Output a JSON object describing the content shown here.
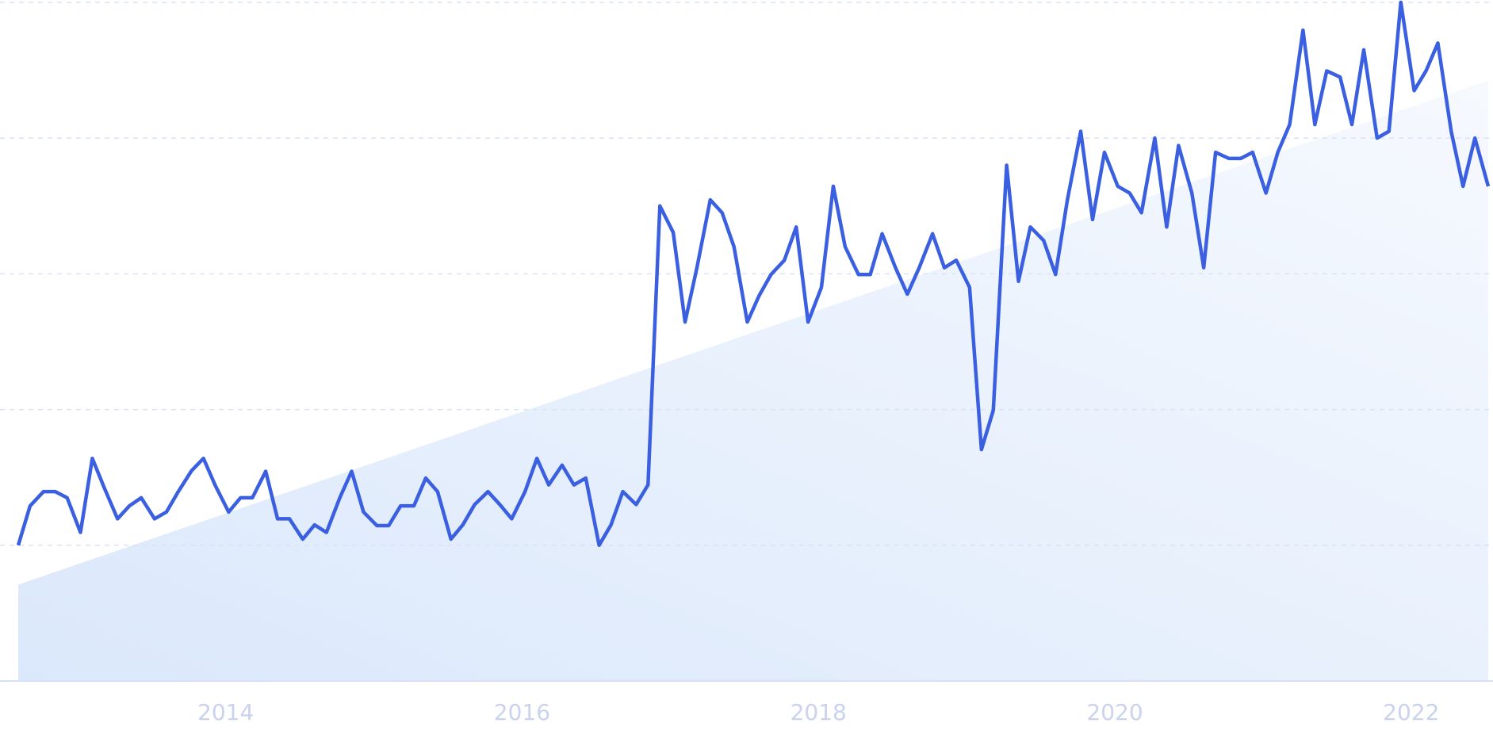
{
  "chart_data": {
    "type": "line",
    "x": [
      2012.6,
      2012.68,
      2012.77,
      2012.85,
      2012.93,
      2013.02,
      2013.1,
      2013.18,
      2013.27,
      2013.35,
      2013.43,
      2013.52,
      2013.6,
      2013.68,
      2013.77,
      2013.85,
      2013.93,
      2014.02,
      2014.1,
      2014.18,
      2014.27,
      2014.35,
      2014.43,
      2014.52,
      2014.6,
      2014.68,
      2014.77,
      2014.85,
      2014.93,
      2015.02,
      2015.1,
      2015.18,
      2015.27,
      2015.35,
      2015.43,
      2015.52,
      2015.6,
      2015.68,
      2015.77,
      2015.85,
      2015.93,
      2016.02,
      2016.1,
      2016.18,
      2016.27,
      2016.35,
      2016.43,
      2016.52,
      2016.6,
      2016.68,
      2016.77,
      2016.85,
      2016.93,
      2017.02,
      2017.1,
      2017.18,
      2017.27,
      2017.35,
      2017.43,
      2017.52,
      2017.6,
      2017.68,
      2017.77,
      2017.85,
      2017.93,
      2018.02,
      2018.1,
      2018.18,
      2018.27,
      2018.35,
      2018.43,
      2018.52,
      2018.6,
      2018.68,
      2018.77,
      2018.85,
      2018.93,
      2019.02,
      2019.1,
      2019.18,
      2019.27,
      2019.35,
      2019.43,
      2019.52,
      2019.6,
      2019.68,
      2019.77,
      2019.85,
      2019.93,
      2020.02,
      2020.1,
      2020.18,
      2020.27,
      2020.35,
      2020.43,
      2020.52,
      2020.6,
      2020.68,
      2020.77,
      2020.85,
      2020.93,
      2021.02,
      2021.1,
      2021.18,
      2021.27,
      2021.35,
      2021.43,
      2021.52,
      2021.6,
      2021.68,
      2021.77,
      2021.85,
      2021.93,
      2022.02,
      2022.1,
      2022.18,
      2022.27,
      2022.35,
      2022.43,
      2022.52
    ],
    "series": [
      {
        "color": "#3a5fe0",
        "values": [
          20,
          25.8,
          27.9,
          27.9,
          27,
          21.9,
          32.8,
          28.5,
          23.9,
          25.8,
          27,
          23.9,
          24.9,
          27.9,
          31,
          32.8,
          28.8,
          24.9,
          27,
          27,
          30.9,
          23.9,
          23.9,
          20.9,
          23,
          21.9,
          27,
          30.9,
          24.9,
          22.9,
          22.9,
          25.8,
          25.8,
          29.9,
          27.9,
          20.9,
          23,
          26,
          27.9,
          26,
          23.9,
          27.9,
          32.8,
          28.9,
          31.8,
          28.9,
          29.9,
          20,
          23,
          27.9,
          26,
          28.9,
          70,
          66.1,
          52.9,
          60.9,
          70.9,
          69,
          64,
          52.9,
          56.8,
          59.9,
          62,
          66.9,
          52.9,
          58,
          72.9,
          64,
          59.9,
          59.9,
          65.9,
          60.9,
          57,
          60.9,
          65.9,
          60.9,
          62,
          58,
          34.1,
          39.9,
          76,
          58.9,
          66.9,
          64.9,
          59.9,
          70.9,
          81,
          68,
          77.9,
          72.9,
          71.9,
          69,
          80,
          66.9,
          78.9,
          71.9,
          60.9,
          77.9,
          77,
          77,
          77.9,
          71.9,
          77.9,
          82,
          95.9,
          82,
          89.9,
          89,
          82,
          93,
          80,
          81,
          100,
          87,
          89.9,
          94,
          81,
          72.9,
          80,
          72.9
        ]
      }
    ],
    "trend": {
      "color": "#dbe8fb",
      "x": [
        2012.6,
        2022.52
      ],
      "values": [
        14.2,
        88.5
      ]
    },
    "xlim": [
      2012.6,
      2022.52
    ],
    "ylim": [
      0,
      100
    ],
    "xticks": [
      2014,
      2016,
      2018,
      2020,
      2022
    ],
    "yticks": [
      0,
      20,
      40,
      60,
      80,
      100
    ],
    "grid": true
  }
}
